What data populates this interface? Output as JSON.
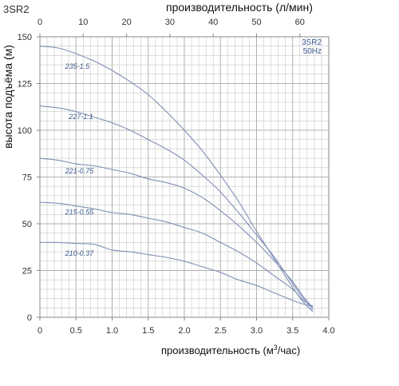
{
  "chart_data": {
    "type": "line",
    "model_label": "3SR2",
    "badge": [
      "3SR2",
      "50Hz"
    ],
    "xlabel_bottom_prefix": "производительность (м",
    "xlabel_bottom_sup": "3",
    "xlabel_bottom_suffix": "/час)",
    "xlabel_top": "производительность (л/мин)",
    "ylabel": "высота подъёма (м)",
    "xlim": [
      0,
      4.0
    ],
    "ylim": [
      0,
      150
    ],
    "x_ticks": [
      "0",
      "0.5",
      "1.0",
      "1.5",
      "2.0",
      "2.5",
      "3.0",
      "3.5",
      "4.0"
    ],
    "x_tick_values": [
      0,
      0.5,
      1.0,
      1.5,
      2.0,
      2.5,
      3.0,
      3.5,
      4.0
    ],
    "top_ticks": [
      "0",
      "10",
      "20",
      "30",
      "40",
      "50",
      "60"
    ],
    "top_tick_values": [
      0,
      10,
      20,
      30,
      40,
      50,
      60
    ],
    "y_ticks": [
      "0",
      "25",
      "50",
      "75",
      "100",
      "125",
      "150"
    ],
    "y_tick_values": [
      0,
      25,
      50,
      75,
      100,
      125,
      150
    ],
    "grid": true,
    "colors": {
      "curve": "#7f8fb5",
      "grid": "#c8c8c8",
      "frame": "#888888",
      "label": "#3a5a8c"
    },
    "series": [
      {
        "name": "235-1.5",
        "label_at": [
          0.35,
          133
        ],
        "x": [
          0,
          0.25,
          0.5,
          0.75,
          1.0,
          1.25,
          1.5,
          1.75,
          2.0,
          2.25,
          2.5,
          2.75,
          3.0,
          3.25,
          3.5,
          3.65,
          3.78
        ],
        "y": [
          145,
          144,
          141,
          137,
          132,
          126,
          119,
          110,
          100,
          89,
          76,
          62,
          46,
          31,
          16,
          8,
          3
        ]
      },
      {
        "name": "227-1.1",
        "label_at": [
          0.4,
          106
        ],
        "x": [
          0,
          0.25,
          0.5,
          0.75,
          1.0,
          1.25,
          1.5,
          1.75,
          2.0,
          2.25,
          2.5,
          2.75,
          3.0,
          3.25,
          3.5,
          3.65,
          3.78
        ],
        "y": [
          113,
          112,
          110,
          107,
          104,
          100,
          95,
          90,
          84,
          76,
          67,
          56,
          44,
          32,
          18,
          10,
          4
        ]
      },
      {
        "name": "221-0.75",
        "label_at": [
          0.35,
          77
        ],
        "x": [
          0,
          0.25,
          0.5,
          0.75,
          1.0,
          1.25,
          1.5,
          1.75,
          2.0,
          2.25,
          2.5,
          2.75,
          3.0,
          3.25,
          3.5,
          3.65,
          3.78
        ],
        "y": [
          85,
          84,
          82,
          81,
          79,
          77,
          74,
          72,
          69,
          64,
          57,
          49,
          40,
          30,
          19,
          11,
          5
        ]
      },
      {
        "name": "215-0.55",
        "label_at": [
          0.35,
          55
        ],
        "x": [
          0,
          0.25,
          0.5,
          0.75,
          1.0,
          1.25,
          1.5,
          1.75,
          2.0,
          2.25,
          2.5,
          2.75,
          3.0,
          3.25,
          3.5,
          3.65,
          3.78
        ],
        "y": [
          61.5,
          61,
          59.5,
          58,
          56,
          55,
          53,
          51,
          48,
          45,
          40,
          35,
          29,
          22,
          15,
          9,
          6
        ]
      },
      {
        "name": "210-0.37",
        "label_at": [
          0.35,
          33
        ],
        "x": [
          0,
          0.25,
          0.5,
          0.75,
          1.0,
          1.25,
          1.5,
          1.75,
          2.0,
          2.25,
          2.5,
          2.75,
          3.0,
          3.25,
          3.5,
          3.65,
          3.78
        ],
        "y": [
          40,
          40,
          39.5,
          39,
          36,
          35,
          33.5,
          32,
          30,
          27,
          24,
          20,
          17,
          13,
          9,
          7,
          6
        ]
      }
    ]
  }
}
